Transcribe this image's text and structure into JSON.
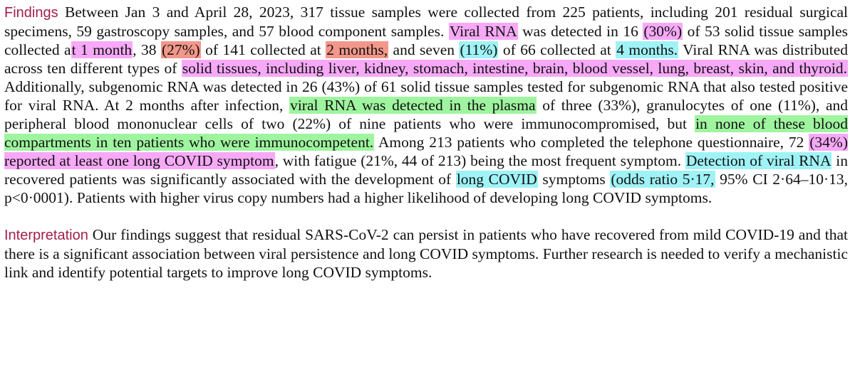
{
  "colors": {
    "heading": "#a31f4a",
    "highlight_pink": "#f7a9f7",
    "highlight_salmon": "#f2978a",
    "highlight_cyan": "#9ff3f6",
    "highlight_green": "#9ff59f"
  },
  "findings": {
    "heading": "Findings",
    "segments": [
      {
        "text": " Between Jan 3 and April 28, 2023, 317 tissue samples were collected from 225 patients, including 201 residual surgical specimens, 59 gastroscopy samples, and 57 blood component samples. ",
        "hl": ""
      },
      {
        "text": "Viral RNA",
        "hl": "pink"
      },
      {
        "text": " was detected in 16 ",
        "hl": ""
      },
      {
        "text": "(30%)",
        "hl": "pink"
      },
      {
        "text": " of 53 solid tissue samples collected a",
        "hl": ""
      },
      {
        "text": "t 1 month",
        "hl": "pink"
      },
      {
        "text": ", 38 ",
        "hl": ""
      },
      {
        "text": "(27%)",
        "hl": "salmon"
      },
      {
        "text": " of 141 collected at ",
        "hl": ""
      },
      {
        "text": "2 months,",
        "hl": "salmon"
      },
      {
        "text": " and seven ",
        "hl": ""
      },
      {
        "text": "(11%)",
        "hl": "cyan"
      },
      {
        "text": " of 66 collected at ",
        "hl": ""
      },
      {
        "text": "4 months.",
        "hl": "cyan"
      },
      {
        "text": " Viral RNA was distributed across ten different types of ",
        "hl": ""
      },
      {
        "text": "solid tissues, including liver, kidney, stomach, intestine, brain, blood vessel, lung, breast, skin, and thyroid.",
        "hl": "pink"
      },
      {
        "text": " Additionally, subgenomic RNA was detected in 26 (43%) of 61 solid tissue samples tested for subgenomic RNA that also tested positive for viral RNA. At 2 months after infection, ",
        "hl": ""
      },
      {
        "text": "viral RNA was detected in the plasma",
        "hl": "green"
      },
      {
        "text": " of three (33%), granulocytes of one (11%), and peripheral blood mononuclear cells of two (22%) of nine patients who were immunocompromised, but ",
        "hl": ""
      },
      {
        "text": "in none of these blood compartments in ten patients who were immunocompetent.",
        "hl": "green"
      },
      {
        "text": " Among 213 patients who completed the telephone questionnaire, 72 ",
        "hl": ""
      },
      {
        "text": "(34%) reported at least one long COVID symptom",
        "hl": "pink"
      },
      {
        "text": ", with fatigue (21%, 44 of 213) being the most frequent symptom. ",
        "hl": ""
      },
      {
        "text": "Detection of viral RNA",
        "hl": "cyan"
      },
      {
        "text": " in recovered patients was significantly associated with the development of ",
        "hl": ""
      },
      {
        "text": "long COVID",
        "hl": "cyan"
      },
      {
        "text": " symptoms ",
        "hl": ""
      },
      {
        "text": "(odds ratio 5·17,",
        "hl": "cyan"
      },
      {
        "text": " 95% CI 2·64–10·13, p<0·0001). Patients with higher virus copy numbers had a higher likelihood of developing long COVID symptoms.",
        "hl": ""
      }
    ]
  },
  "interpretation": {
    "heading": "Interpretation",
    "segments": [
      {
        "text": " Our findings suggest that residual SARS-CoV-2 can persist in patients who have recovered from mild COVID-19 and that there is a significant association between viral persistence and long COVID symptoms. Further research is needed to verify a mechanistic link and identify potential targets to improve long COVID symptoms.",
        "hl": ""
      }
    ]
  }
}
